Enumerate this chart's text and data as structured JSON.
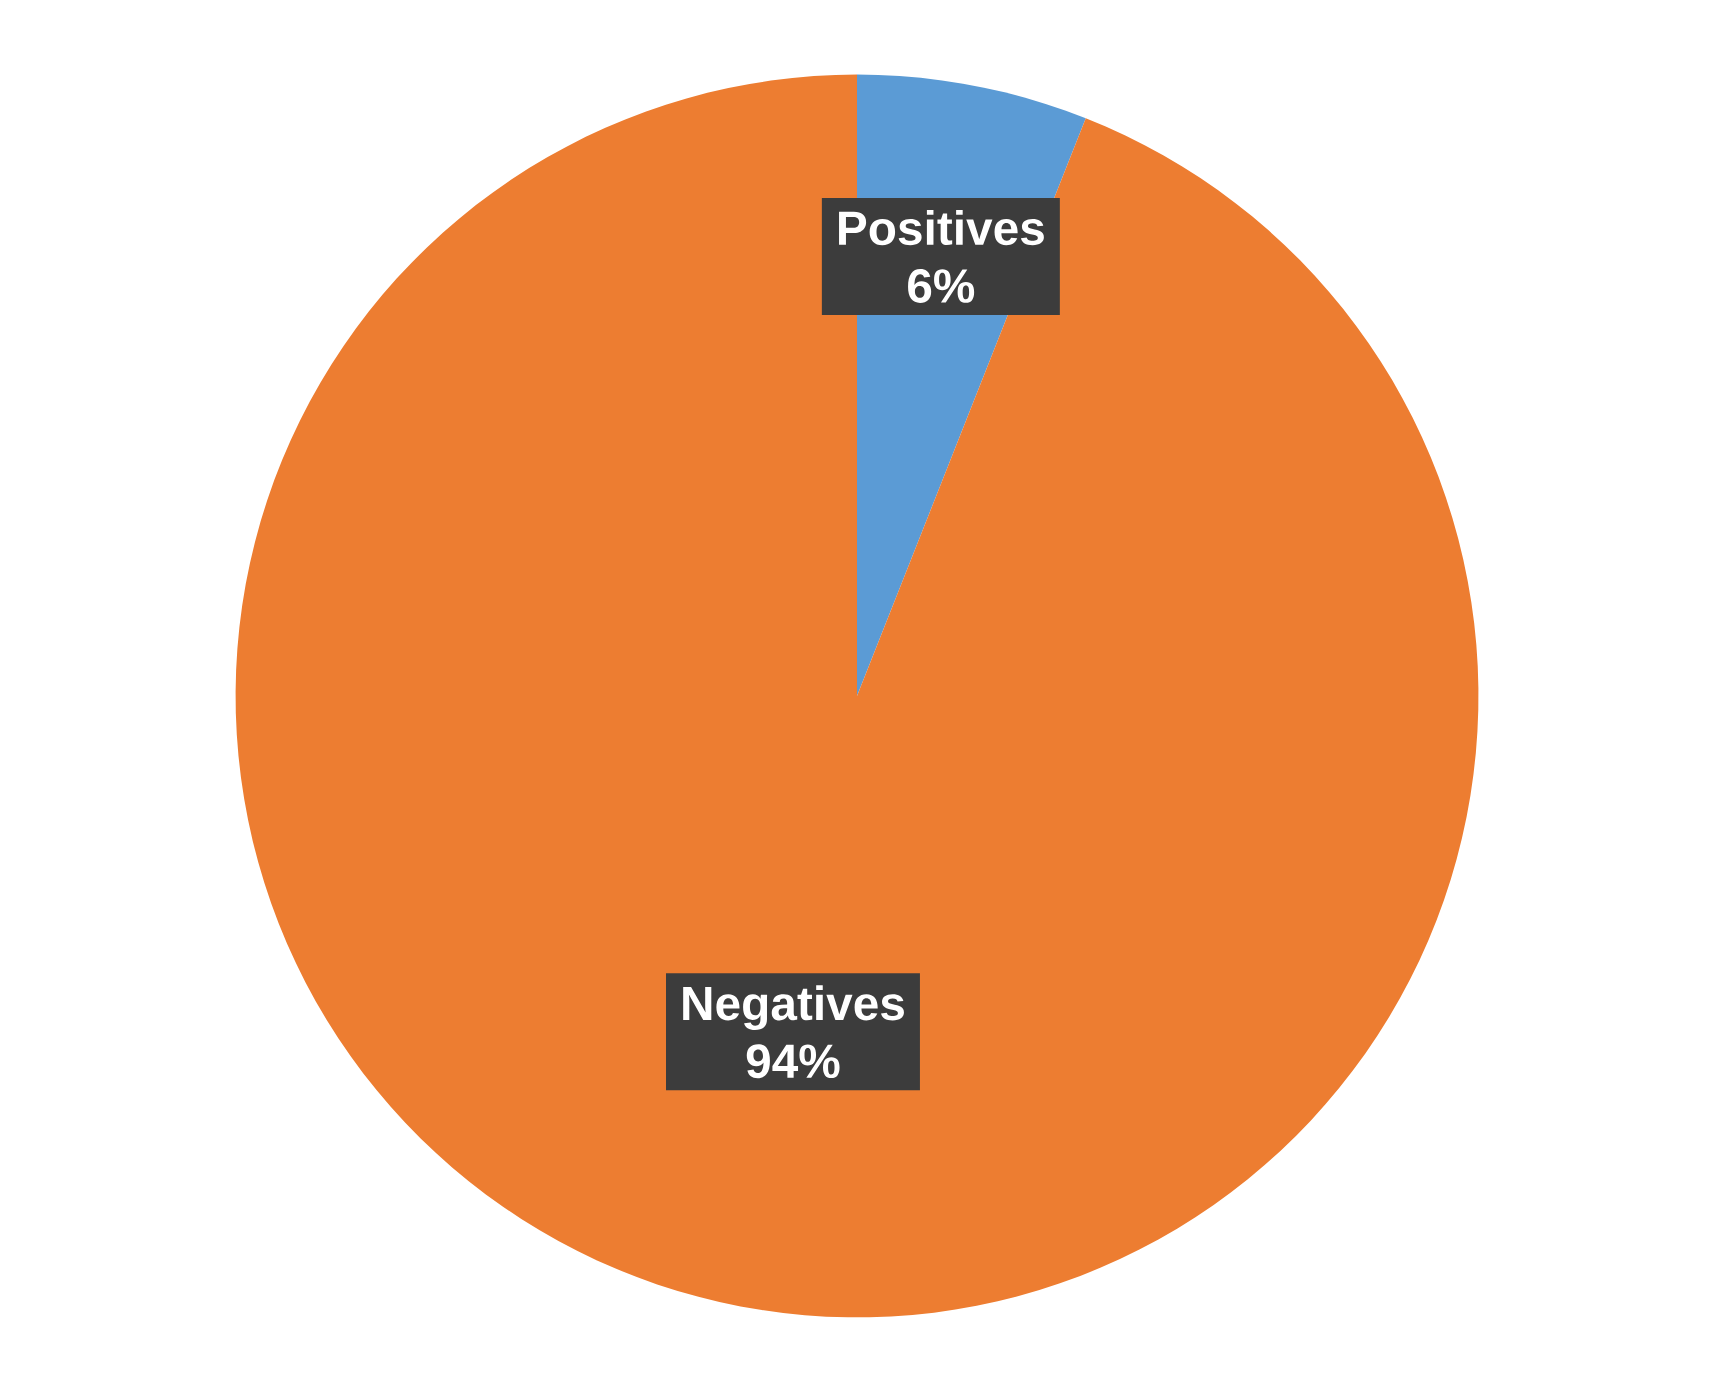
{
  "chart_data": {
    "type": "pie",
    "categories": [
      "Positives",
      "Negatives"
    ],
    "values": [
      6,
      94
    ],
    "value_labels": [
      "6%",
      "94%"
    ],
    "colors": [
      "#5b9bd5",
      "#ed7d31"
    ]
  }
}
